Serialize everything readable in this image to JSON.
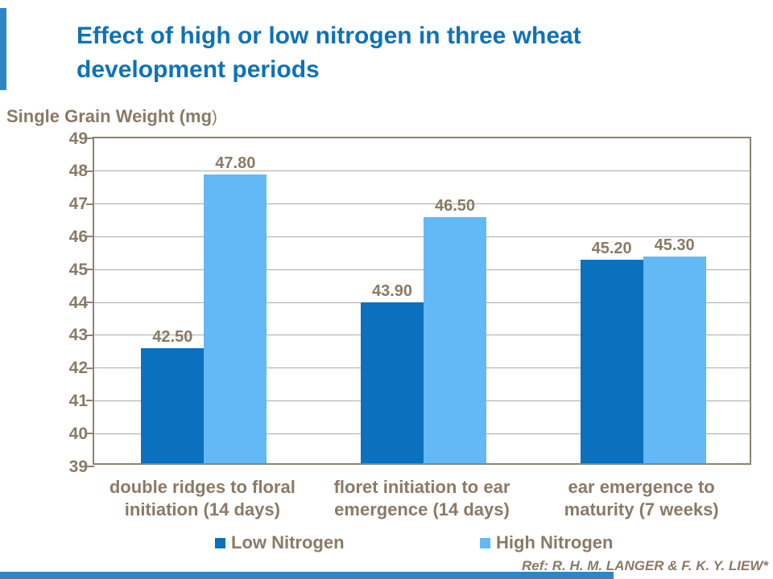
{
  "colors": {
    "title_blue": "#0E72BA",
    "text_brown": "#8A7A66",
    "accent_blue": "#2E86C4",
    "plot_border": "#8E8373",
    "gridline_gray": "#ABABAB",
    "low_nitrogen_blue": "#0B70BE",
    "high_nitrogen_blue": "#63B8F6"
  },
  "title": {
    "line1": "Effect of high or low nitrogen in three wheat",
    "line2": "development periods"
  },
  "y_axis_title": {
    "text": "Single Grain Weight (mg",
    "suffix": ")"
  },
  "chart_data": {
    "type": "bar",
    "title": "Effect of high or low nitrogen in three wheat development periods",
    "ylabel": "Single Grain Weight (mg)",
    "xlabel": "",
    "ylim": [
      39,
      49
    ],
    "ytick_step": 1,
    "grid": true,
    "legend_position": "bottom",
    "categories": [
      "double ridges to floral initiation (14 days)",
      "floret initiation to ear emergence (14 days)",
      "ear emergence to maturity (7 weeks)"
    ],
    "series": [
      {
        "name": "Low Nitrogen",
        "color": "#0B70BE",
        "values": [
          42.5,
          43.9,
          45.2
        ],
        "value_labels": [
          "42.50",
          "43.90",
          "45.20"
        ]
      },
      {
        "name": "High Nitrogen",
        "color": "#63B8F6",
        "values": [
          47.8,
          46.5,
          45.3
        ],
        "value_labels": [
          "47.80",
          "46.50",
          "45.30"
        ]
      }
    ]
  },
  "legend": {
    "low_label": "Low Nitrogen",
    "high_label": "High Nitrogen"
  },
  "footer": {
    "ref": "Ref: R. H. M. LANGER & F. K. Y. LIEW*"
  }
}
